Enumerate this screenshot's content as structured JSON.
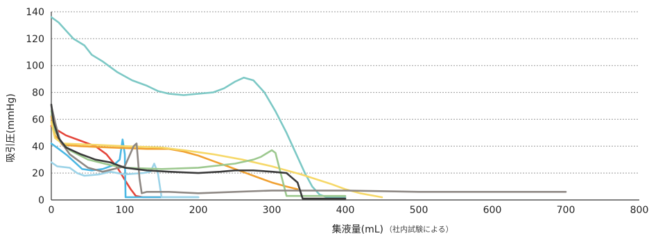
{
  "chart_data": {
    "type": "line",
    "title": "",
    "xlabel": "集液量(mL)",
    "xlabel_note": "（社内試験による）",
    "ylabel": "吸引圧(mmHg)",
    "xlim": [
      0,
      800
    ],
    "ylim": [
      0,
      140
    ],
    "x_ticks": [
      0,
      100,
      200,
      300,
      400,
      500,
      600,
      700,
      800
    ],
    "y_ticks": [
      0,
      20,
      40,
      60,
      80,
      100,
      120,
      140
    ],
    "grid": "horizontal-dashed",
    "legend": "none",
    "series": [
      {
        "color": "#7cc8c5",
        "points": [
          [
            0,
            136
          ],
          [
            10,
            132
          ],
          [
            20,
            126
          ],
          [
            30,
            120
          ],
          [
            45,
            115
          ],
          [
            55,
            108
          ],
          [
            70,
            103
          ],
          [
            90,
            95
          ],
          [
            110,
            89
          ],
          [
            130,
            85
          ],
          [
            145,
            81
          ],
          [
            160,
            79
          ],
          [
            180,
            78
          ],
          [
            200,
            79
          ],
          [
            220,
            80
          ],
          [
            235,
            83
          ],
          [
            250,
            88
          ],
          [
            262,
            91
          ],
          [
            275,
            89
          ],
          [
            290,
            80
          ],
          [
            305,
            66
          ],
          [
            320,
            50
          ],
          [
            335,
            32
          ],
          [
            345,
            20
          ],
          [
            355,
            10
          ],
          [
            365,
            4
          ],
          [
            375,
            2
          ],
          [
            400,
            2
          ]
        ]
      },
      {
        "color": "#e4453a",
        "points": [
          [
            0,
            55
          ],
          [
            8,
            52
          ],
          [
            20,
            48
          ],
          [
            40,
            44
          ],
          [
            60,
            40
          ],
          [
            75,
            34
          ],
          [
            90,
            24
          ],
          [
            100,
            15
          ],
          [
            108,
            8
          ],
          [
            115,
            3
          ],
          [
            125,
            2
          ],
          [
            150,
            2
          ]
        ]
      },
      {
        "color": "#4ab7e3",
        "points": [
          [
            0,
            42
          ],
          [
            10,
            38
          ],
          [
            22,
            33
          ],
          [
            32,
            28
          ],
          [
            42,
            23
          ],
          [
            55,
            22
          ],
          [
            70,
            23
          ],
          [
            85,
            26
          ],
          [
            93,
            30
          ],
          [
            97,
            45
          ],
          [
            100,
            34
          ],
          [
            101,
            2
          ],
          [
            120,
            2
          ],
          [
            200,
            2
          ]
        ]
      },
      {
        "color": "#9cd3e8",
        "points": [
          [
            0,
            28
          ],
          [
            8,
            25
          ],
          [
            25,
            24
          ],
          [
            35,
            20
          ],
          [
            45,
            18
          ],
          [
            65,
            19
          ],
          [
            80,
            21
          ],
          [
            100,
            19
          ],
          [
            125,
            20
          ],
          [
            135,
            21
          ],
          [
            140,
            27
          ],
          [
            145,
            20
          ],
          [
            150,
            2
          ],
          [
            200,
            2
          ]
        ]
      },
      {
        "color": "#f0a030",
        "points": [
          [
            0,
            62
          ],
          [
            5,
            48
          ],
          [
            15,
            41
          ],
          [
            40,
            40
          ],
          [
            80,
            39
          ],
          [
            130,
            38
          ],
          [
            160,
            38
          ],
          [
            180,
            36
          ],
          [
            200,
            33
          ],
          [
            220,
            29
          ],
          [
            240,
            25
          ],
          [
            260,
            21
          ],
          [
            280,
            17
          ],
          [
            300,
            13
          ],
          [
            320,
            10
          ],
          [
            335,
            8
          ]
        ]
      },
      {
        "color": "#f6d868",
        "points": [
          [
            0,
            58
          ],
          [
            5,
            46
          ],
          [
            15,
            42
          ],
          [
            60,
            41
          ],
          [
            100,
            40
          ],
          [
            150,
            39
          ],
          [
            180,
            37
          ],
          [
            220,
            34
          ],
          [
            260,
            30
          ],
          [
            300,
            25
          ],
          [
            340,
            19
          ],
          [
            380,
            12
          ],
          [
            400,
            8
          ],
          [
            420,
            5
          ],
          [
            450,
            2
          ]
        ]
      },
      {
        "color": "#9cc88e",
        "points": [
          [
            0,
            66
          ],
          [
            5,
            52
          ],
          [
            12,
            44
          ],
          [
            25,
            37
          ],
          [
            50,
            30
          ],
          [
            80,
            26
          ],
          [
            100,
            24
          ],
          [
            150,
            23
          ],
          [
            200,
            24
          ],
          [
            250,
            27
          ],
          [
            275,
            30
          ],
          [
            285,
            32
          ],
          [
            300,
            37
          ],
          [
            305,
            35
          ],
          [
            320,
            3
          ],
          [
            350,
            3
          ],
          [
            400,
            3
          ]
        ]
      },
      {
        "color": "#8e8884",
        "points": [
          [
            0,
            70
          ],
          [
            6,
            56
          ],
          [
            12,
            44
          ],
          [
            25,
            34
          ],
          [
            50,
            24
          ],
          [
            70,
            21
          ],
          [
            100,
            25
          ],
          [
            112,
            40
          ],
          [
            116,
            42
          ],
          [
            120,
            16
          ],
          [
            123,
            5
          ],
          [
            130,
            6
          ],
          [
            160,
            6
          ],
          [
            200,
            5
          ],
          [
            250,
            6
          ],
          [
            300,
            7
          ],
          [
            400,
            7
          ],
          [
            500,
            6
          ],
          [
            600,
            6
          ],
          [
            700,
            6
          ]
        ]
      },
      {
        "color": "#3a3a3a",
        "points": [
          [
            0,
            71
          ],
          [
            3,
            58
          ],
          [
            10,
            46
          ],
          [
            20,
            39
          ],
          [
            40,
            34
          ],
          [
            60,
            30
          ],
          [
            80,
            28
          ],
          [
            100,
            24
          ],
          [
            130,
            22
          ],
          [
            160,
            21
          ],
          [
            200,
            20
          ],
          [
            230,
            21
          ],
          [
            250,
            22
          ],
          [
            275,
            22
          ],
          [
            300,
            21
          ],
          [
            320,
            20
          ],
          [
            335,
            13
          ],
          [
            342,
            1
          ],
          [
            360,
            1
          ],
          [
            400,
            1
          ]
        ]
      }
    ]
  }
}
